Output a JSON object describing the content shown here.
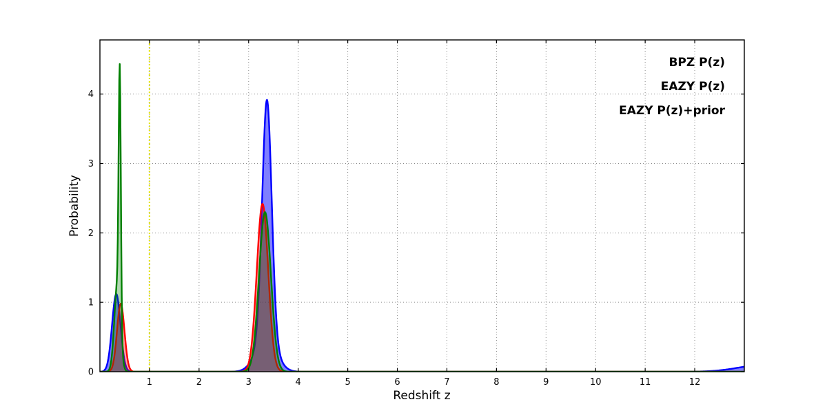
{
  "figure": {
    "background": "#ffffff",
    "frame_color": "#000000",
    "grid_color": "#8a8a8a"
  },
  "chart_data": {
    "type": "line",
    "title": "",
    "xlabel": "Redshift z",
    "ylabel": "Probability",
    "xlim": [
      0,
      13
    ],
    "ylim": [
      0,
      4.78
    ],
    "xticks": [
      1,
      2,
      3,
      4,
      5,
      6,
      7,
      8,
      9,
      10,
      11,
      12
    ],
    "yticks": [
      0,
      1,
      2,
      3,
      4
    ],
    "grid": true,
    "grid_style": "dotted",
    "legend_position": "upper right",
    "vline": {
      "x": 1.0,
      "color": "#e6e600",
      "style": "dotted"
    },
    "series": [
      {
        "name": "BPZ P(z)",
        "color": "#0000ff",
        "fill_opacity": 0.5,
        "peaks": [
          {
            "x": 0.33,
            "y": 1.15
          },
          {
            "x": 3.37,
            "y": 3.9
          }
        ],
        "components": [
          {
            "mu": 0.33,
            "sigma": 0.085,
            "amp": 1.12
          },
          {
            "mu": 3.37,
            "sigma": 0.095,
            "amp": 3.42
          },
          {
            "mu": 3.35,
            "sigma": 0.2,
            "amp": 0.5
          },
          {
            "mu": 13.4,
            "sigma": 0.5,
            "amp": 0.1
          }
        ]
      },
      {
        "name": "EAZY P(z)",
        "color": "#ff0000",
        "fill_opacity": 0.35,
        "peaks": [
          {
            "x": 0.42,
            "y": 1.0
          },
          {
            "x": 3.28,
            "y": 2.45
          }
        ],
        "components": [
          {
            "mu": 0.42,
            "sigma": 0.075,
            "amp": 0.98
          },
          {
            "mu": 3.28,
            "sigma": 0.115,
            "amp": 2.42
          }
        ]
      },
      {
        "name": "EAZY P(z)+prior",
        "color": "#007f00",
        "fill_opacity": 0.3,
        "peaks": [
          {
            "x": 0.4,
            "y": 4.4
          },
          {
            "x": 3.33,
            "y": 2.33
          }
        ],
        "components": [
          {
            "mu": 0.4,
            "sigma": 0.022,
            "amp": 3.55
          },
          {
            "mu": 0.35,
            "sigma": 0.06,
            "amp": 1.25
          },
          {
            "mu": 3.33,
            "sigma": 0.12,
            "amp": 2.3
          }
        ]
      }
    ]
  }
}
